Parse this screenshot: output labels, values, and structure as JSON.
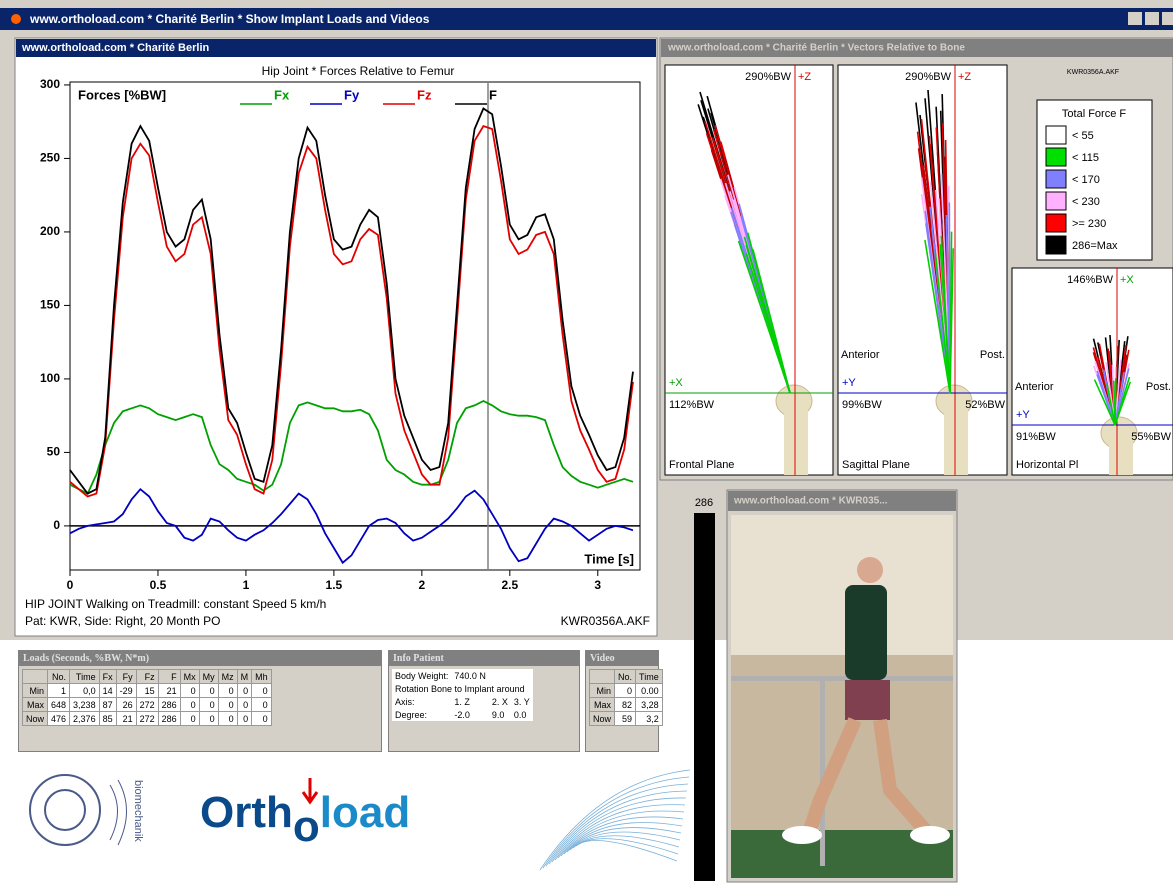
{
  "window": {
    "title": "www.orthoload.com * Charité Berlin * Show Implant Loads and Videos"
  },
  "forces_panel": {
    "title": "www.orthoload.com * Charité Berlin",
    "notes": [
      "HIP JOINT Walking on Treadmill: constant Speed 5 km/h",
      "Pat: KWR, Side: Right, 20 Month PO"
    ],
    "file": "KWR0356A.AKF"
  },
  "chart_data": {
    "type": "line",
    "title": "Hip Joint * Forces  Relative to Femur",
    "y_label": "Forces  [%BW]",
    "x_label": "Time  [s]",
    "x": [
      0,
      0.05,
      0.1,
      0.15,
      0.2,
      0.25,
      0.3,
      0.35,
      0.4,
      0.45,
      0.5,
      0.55,
      0.6,
      0.65,
      0.7,
      0.75,
      0.8,
      0.85,
      0.9,
      0.95,
      1,
      1.05,
      1.1,
      1.15,
      1.2,
      1.25,
      1.3,
      1.35,
      1.4,
      1.45,
      1.5,
      1.55,
      1.6,
      1.65,
      1.7,
      1.75,
      1.8,
      1.85,
      1.9,
      1.95,
      2,
      2.05,
      2.1,
      2.15,
      2.2,
      2.25,
      2.3,
      2.35,
      2.4,
      2.45,
      2.5,
      2.55,
      2.6,
      2.65,
      2.7,
      2.75,
      2.8,
      2.85,
      2.9,
      2.95,
      3,
      3.05,
      3.1,
      3.15,
      3.2
    ],
    "series": [
      {
        "name": "Fx",
        "color": "#00a000",
        "values": [
          28,
          25,
          22,
          35,
          55,
          70,
          78,
          80,
          82,
          80,
          76,
          74,
          72,
          74,
          76,
          74,
          55,
          42,
          38,
          32,
          30,
          28,
          24,
          28,
          42,
          70,
          82,
          84,
          82,
          80,
          80,
          78,
          78,
          79,
          76,
          65,
          45,
          38,
          35,
          30,
          28,
          28,
          30,
          45,
          70,
          80,
          82,
          85,
          82,
          78,
          76,
          75,
          75,
          74,
          72,
          55,
          40,
          34,
          30,
          28,
          26,
          28,
          30,
          32,
          30
        ]
      },
      {
        "name": "Fy",
        "color": "#0000c0",
        "values": [
          -5,
          -2,
          0,
          1,
          2,
          3,
          8,
          18,
          25,
          20,
          10,
          2,
          0,
          -8,
          -10,
          -6,
          5,
          3,
          -3,
          -8,
          -10,
          -6,
          -3,
          2,
          8,
          15,
          22,
          18,
          8,
          -5,
          -15,
          -25,
          -20,
          -10,
          0,
          4,
          5,
          2,
          -5,
          -10,
          -8,
          -4,
          0,
          5,
          12,
          20,
          24,
          18,
          8,
          -2,
          -15,
          -24,
          -22,
          -12,
          -2,
          5,
          3,
          0,
          -5,
          -10,
          -6,
          -2,
          0,
          -1,
          -3
        ]
      },
      {
        "name": "Fz",
        "color": "#e00000",
        "values": [
          30,
          25,
          20,
          22,
          55,
          140,
          210,
          250,
          260,
          252,
          220,
          190,
          180,
          185,
          205,
          210,
          185,
          120,
          72,
          62,
          42,
          25,
          22,
          45,
          110,
          190,
          240,
          258,
          250,
          215,
          185,
          178,
          180,
          195,
          202,
          198,
          155,
          90,
          65,
          50,
          35,
          28,
          28,
          60,
          140,
          222,
          262,
          272,
          270,
          235,
          195,
          185,
          188,
          198,
          200,
          185,
          130,
          85,
          65,
          52,
          38,
          30,
          32,
          52,
          98
        ]
      },
      {
        "name": "F",
        "color": "#000000",
        "values": [
          38,
          30,
          22,
          25,
          60,
          150,
          220,
          260,
          272,
          262,
          230,
          200,
          190,
          195,
          215,
          222,
          195,
          130,
          80,
          70,
          50,
          32,
          30,
          55,
          120,
          200,
          250,
          271,
          262,
          225,
          195,
          188,
          190,
          205,
          215,
          210,
          165,
          100,
          75,
          60,
          45,
          38,
          40,
          70,
          150,
          230,
          270,
          284,
          280,
          245,
          205,
          195,
          198,
          210,
          212,
          195,
          140,
          95,
          75,
          62,
          48,
          38,
          40,
          60,
          105
        ]
      }
    ],
    "xlim": [
      0,
      3.24
    ],
    "ylim": [
      -30,
      302
    ],
    "xticks": [
      0,
      0.5,
      1,
      1.5,
      2,
      2.5,
      3
    ],
    "yticks": [
      0,
      50,
      100,
      150,
      200,
      250,
      300
    ],
    "cursor_x": 2.376
  },
  "vectors_panel": {
    "title": "www.orthoload.com * Charité Berlin * Vectors Relative to Bone",
    "file": "KWR0356A.AKF",
    "frontal": {
      "top": "290%BW",
      "axis_up": "+Z",
      "axis_side": "+X",
      "side": "112%BW",
      "name": "Frontal Plane"
    },
    "sagittal": {
      "top": "290%BW",
      "axis_up": "+Z",
      "axis_side": "+Y",
      "left": "Anterior",
      "right": "Post.",
      "side": "99%BW",
      "side2": "52%BW",
      "name": "Sagittal Plane"
    },
    "horizontal": {
      "top": "146%BW",
      "axis_up": "+X",
      "axis_side": "+Y",
      "left": "Anterior",
      "right": "Post.",
      "side": "91%BW",
      "side2": "55%BW",
      "name": "Horizontal Pl"
    },
    "legend": {
      "title": "Total Force F",
      "items": [
        {
          "label": "< 55",
          "color": "#ffffff"
        },
        {
          "label": "< 115",
          "color": "#00e000"
        },
        {
          "label": "< 170",
          "color": "#8080ff"
        },
        {
          "label": "< 230",
          "color": "#ffb0ff"
        },
        {
          "label": ">= 230",
          "color": "#ff0000"
        },
        {
          "label": "286=Max",
          "color": "#000000"
        }
      ]
    }
  },
  "video": {
    "bar_label": "286",
    "title": "www.orthoload.com * KWR035..."
  },
  "loads": {
    "title": "Loads   (Seconds, %BW, N*m)",
    "header": [
      "",
      "No.",
      "Time",
      "Fx",
      "Fy",
      "Fz",
      "F",
      "Mx",
      "My",
      "Mz",
      "M",
      "Mh"
    ],
    "rows": [
      [
        "Min",
        "1",
        "0,0",
        "14",
        "-29",
        "15",
        "21",
        "0",
        "0",
        "0",
        "0",
        "0"
      ],
      [
        "Max",
        "648",
        "3,238",
        "87",
        "26",
        "272",
        "286",
        "0",
        "0",
        "0",
        "0",
        "0"
      ],
      [
        "Now",
        "476",
        "2,376",
        "85",
        "21",
        "272",
        "286",
        "0",
        "0",
        "0",
        "0",
        "0"
      ]
    ]
  },
  "patient": {
    "title": "Info Patient",
    "rows": [
      [
        "Body Weight:",
        "740.0 N"
      ],
      [
        "Rotation Bone to Implant around"
      ],
      [
        "Axis:",
        "1. Z",
        "2. X",
        "3. Y"
      ],
      [
        "Degree:",
        "-2.0",
        "9.0",
        "0.0"
      ]
    ]
  },
  "video_table": {
    "title": "Video",
    "header": [
      "",
      "No.",
      "Time"
    ],
    "rows": [
      [
        "Min",
        "0",
        "0.00"
      ],
      [
        "Max",
        "82",
        "3,28"
      ],
      [
        "Now",
        "59",
        "3,2"
      ]
    ]
  },
  "logos": {
    "biomechanik": "biomechanik",
    "orthoload": [
      "Orth",
      "o",
      "load"
    ]
  }
}
